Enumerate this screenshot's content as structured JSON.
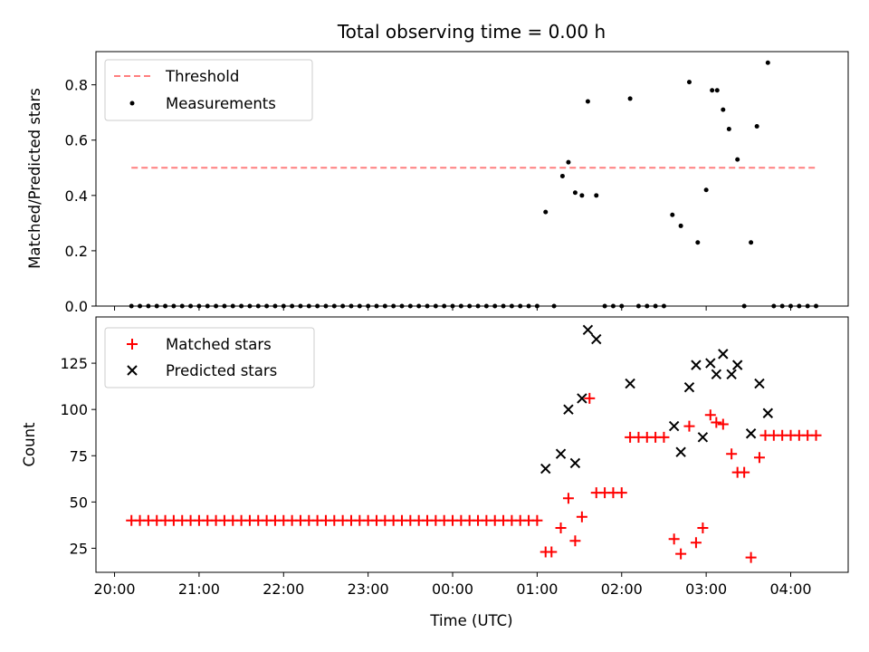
{
  "chart_data": {
    "type": "scatter",
    "title": "Total observing time = 0.00 h",
    "xlabel": "Time (UTC)",
    "x_tick_labels": [
      "20:00",
      "21:00",
      "22:00",
      "23:00",
      "00:00",
      "01:00",
      "02:00",
      "03:00",
      "04:00"
    ],
    "colors": {
      "threshold": "#ff7f7f",
      "measurements": "#000000",
      "matched": "#ff0000",
      "predicted": "#000000"
    },
    "panels": [
      {
        "ylabel": "Matched/Predicted stars",
        "ylim": [
          0,
          0.92
        ],
        "y_ticks": [
          "0.0",
          "0.2",
          "0.4",
          "0.6",
          "0.8"
        ],
        "legend": {
          "placement": "upper-left",
          "entries": [
            "Threshold",
            "Measurements"
          ]
        },
        "series": [
          {
            "name": "Threshold",
            "kind": "dashed-line",
            "x": [
              20.2,
              28.3
            ],
            "y": [
              0.5,
              0.5
            ]
          },
          {
            "name": "Measurements",
            "kind": "dot",
            "x": [
              20.2,
              20.3,
              20.4,
              20.5,
              20.6,
              20.7,
              20.8,
              20.9,
              21.0,
              21.1,
              21.2,
              21.3,
              21.4,
              21.5,
              21.6,
              21.7,
              21.8,
              21.9,
              22.0,
              22.1,
              22.2,
              22.3,
              22.4,
              22.5,
              22.6,
              22.7,
              22.8,
              22.9,
              23.0,
              23.1,
              23.2,
              23.3,
              23.4,
              23.5,
              23.6,
              23.7,
              23.8,
              23.9,
              24.0,
              24.1,
              24.2,
              24.3,
              24.4,
              24.5,
              24.6,
              24.7,
              24.8,
              24.9,
              25.0,
              25.1,
              25.2,
              25.3,
              25.37,
              25.45,
              25.53,
              25.6,
              25.7,
              25.8,
              25.9,
              26.0,
              26.1,
              26.2,
              26.3,
              26.4,
              26.5,
              26.6,
              26.7,
              26.8,
              26.9,
              27.0,
              27.07,
              27.13,
              27.2,
              27.27,
              27.37,
              27.45,
              27.53,
              27.6,
              27.73,
              27.8,
              27.9,
              28.0,
              28.1,
              28.2,
              28.3
            ],
            "y": [
              0,
              0,
              0,
              0,
              0,
              0,
              0,
              0,
              0,
              0,
              0,
              0,
              0,
              0,
              0,
              0,
              0,
              0,
              0,
              0,
              0,
              0,
              0,
              0,
              0,
              0,
              0,
              0,
              0,
              0,
              0,
              0,
              0,
              0,
              0,
              0,
              0,
              0,
              0,
              0,
              0,
              0,
              0,
              0,
              0,
              0,
              0,
              0,
              0,
              0.34,
              0,
              0.47,
              0.52,
              0.41,
              0.4,
              0.74,
              0.4,
              0,
              0,
              0,
              0.75,
              0,
              0,
              0,
              0,
              0.33,
              0.29,
              0.81,
              0.23,
              0.42,
              0.78,
              0.78,
              0.71,
              0.64,
              0.53,
              0,
              0.23,
              0.65,
              0.88,
              0,
              0,
              0,
              0,
              0,
              0
            ]
          }
        ]
      },
      {
        "ylabel": "Count",
        "ylim": [
          12,
          150
        ],
        "y_ticks": [
          "25",
          "50",
          "75",
          "100",
          "125"
        ],
        "legend": {
          "placement": "upper-left",
          "entries": [
            "Matched stars",
            "Predicted stars"
          ]
        },
        "series": [
          {
            "name": "Matched stars",
            "kind": "plus",
            "x": [
              20.2,
              20.3,
              20.4,
              20.5,
              20.6,
              20.7,
              20.8,
              20.9,
              21.0,
              21.1,
              21.2,
              21.3,
              21.4,
              21.5,
              21.6,
              21.7,
              21.8,
              21.9,
              22.0,
              22.1,
              22.2,
              22.3,
              22.4,
              22.5,
              22.6,
              22.7,
              22.8,
              22.9,
              23.0,
              23.1,
              23.2,
              23.3,
              23.4,
              23.5,
              23.6,
              23.7,
              23.8,
              23.9,
              24.0,
              24.1,
              24.2,
              24.3,
              24.4,
              24.5,
              24.6,
              24.7,
              24.8,
              24.9,
              25.0,
              25.1,
              25.17,
              25.28,
              25.37,
              25.45,
              25.53,
              25.62,
              25.7,
              25.8,
              25.9,
              26.0,
              26.1,
              26.2,
              26.3,
              26.4,
              26.5,
              26.62,
              26.7,
              26.8,
              26.88,
              26.96,
              27.05,
              27.12,
              27.2,
              27.3,
              27.37,
              27.45,
              27.53,
              27.63,
              27.7,
              27.8,
              27.9,
              28.0,
              28.1,
              28.2,
              28.3
            ],
            "y": [
              40,
              40,
              40,
              40,
              40,
              40,
              40,
              40,
              40,
              40,
              40,
              40,
              40,
              40,
              40,
              40,
              40,
              40,
              40,
              40,
              40,
              40,
              40,
              40,
              40,
              40,
              40,
              40,
              40,
              40,
              40,
              40,
              40,
              40,
              40,
              40,
              40,
              40,
              40,
              40,
              40,
              40,
              40,
              40,
              40,
              40,
              40,
              40,
              40,
              23,
              23,
              36,
              52,
              29,
              42,
              106,
              55,
              55,
              55,
              55,
              85,
              85,
              85,
              85,
              85,
              30,
              22,
              91,
              28,
              36,
              97,
              93,
              92,
              76,
              66,
              66,
              20,
              74,
              86,
              86,
              86,
              86,
              86,
              86,
              86
            ]
          },
          {
            "name": "Predicted stars",
            "kind": "x",
            "x": [
              25.1,
              25.28,
              25.37,
              25.45,
              25.53,
              25.6,
              25.7,
              26.1,
              26.62,
              26.7,
              26.8,
              26.88,
              26.96,
              27.05,
              27.12,
              27.2,
              27.3,
              27.37,
              27.53,
              27.63,
              27.73
            ],
            "y": [
              68,
              76,
              100,
              71,
              106,
              143,
              138,
              114,
              91,
              77,
              112,
              124,
              85,
              125,
              119,
              130,
              119,
              124,
              87,
              114,
              98
            ]
          }
        ]
      }
    ]
  }
}
